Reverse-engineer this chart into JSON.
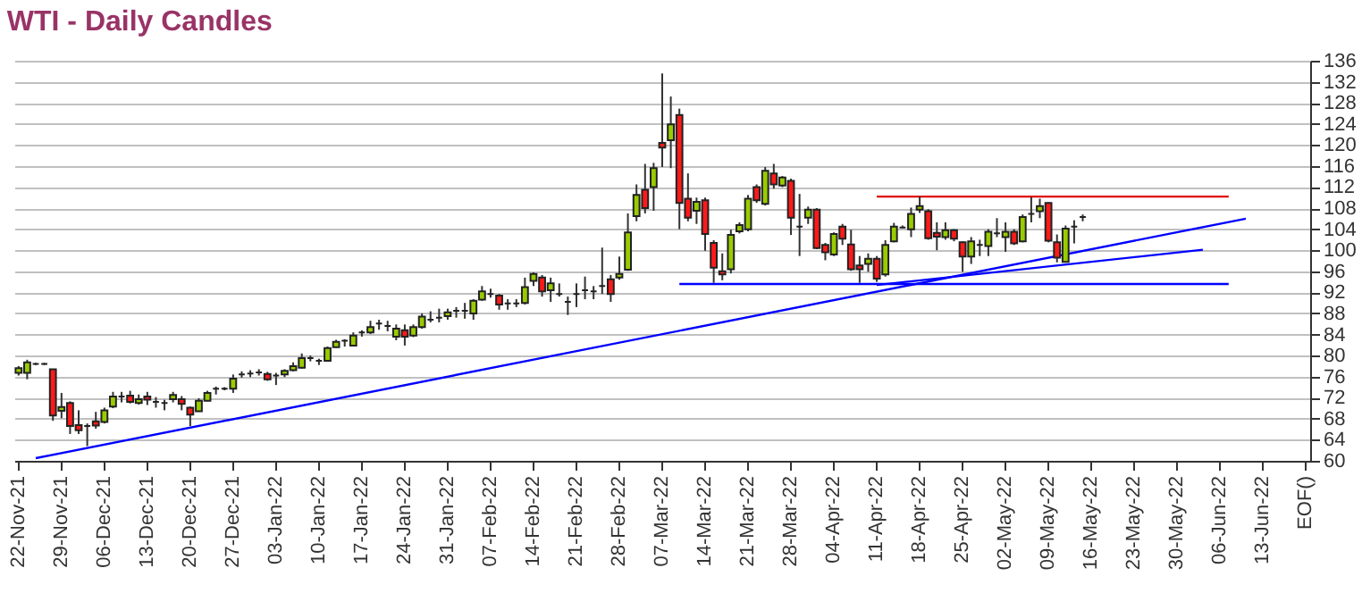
{
  "chart_data": {
    "type": "candlestick",
    "title": "WTI - Daily Candles",
    "categories": [
      "22-Nov-21",
      null,
      null,
      null,
      null,
      "29-Nov-21",
      null,
      null,
      null,
      null,
      "06-Dec-21",
      null,
      null,
      null,
      null,
      "13-Dec-21",
      null,
      null,
      null,
      null,
      "20-Dec-21",
      null,
      null,
      null,
      null,
      "27-Dec-21",
      null,
      null,
      null,
      null,
      "03-Jan-22",
      null,
      null,
      null,
      null,
      "10-Jan-22",
      null,
      null,
      null,
      null,
      "17-Jan-22",
      null,
      null,
      null,
      null,
      "24-Jan-22",
      null,
      null,
      null,
      null,
      "31-Jan-22",
      null,
      null,
      null,
      null,
      "07-Feb-22",
      null,
      null,
      null,
      null,
      "14-Feb-22",
      null,
      null,
      null,
      null,
      "21-Feb-22",
      null,
      null,
      null,
      null,
      "28-Feb-22",
      null,
      null,
      null,
      null,
      "07-Mar-22",
      null,
      null,
      null,
      null,
      "14-Mar-22",
      null,
      null,
      null,
      null,
      "21-Mar-22",
      null,
      null,
      null,
      null,
      "28-Mar-22",
      null,
      null,
      null,
      null,
      "04-Apr-22",
      null,
      null,
      null,
      null,
      "11-Apr-22",
      null,
      null,
      null,
      null,
      "18-Apr-22",
      null,
      null,
      null,
      null,
      "25-Apr-22",
      null,
      null,
      null,
      null,
      "02-May-22",
      null,
      null,
      null,
      null,
      "09-May-22",
      null,
      null,
      null,
      null,
      "16-May-22",
      null,
      null,
      null,
      null,
      "23-May-22",
      null,
      null,
      null,
      null,
      "30-May-22",
      null,
      null,
      null,
      null,
      "06-Jun-22",
      null,
      null,
      null,
      null,
      "13-Jun-22",
      null,
      null,
      null,
      null,
      "EOF()"
    ],
    "ohlc": [
      [
        76.7,
        78.0,
        76.2,
        77.6
      ],
      [
        76.7,
        79.2,
        75.5,
        78.7
      ],
      [
        78.4,
        78.6,
        78.2,
        78.4
      ],
      [
        78.4,
        78.6,
        78.2,
        78.4
      ],
      [
        77.4,
        77.4,
        67.6,
        68.6
      ],
      [
        69.5,
        72.9,
        68.1,
        70.2
      ],
      [
        71.0,
        71.3,
        65.1,
        66.6
      ],
      [
        66.8,
        69.6,
        65.1,
        65.8
      ],
      [
        66.6,
        67.1,
        62.8,
        66.6
      ],
      [
        67.5,
        69.3,
        66.1,
        66.7
      ],
      [
        67.4,
        70.1,
        67.1,
        69.6
      ],
      [
        70.3,
        73.1,
        70.0,
        72.2
      ],
      [
        72.2,
        73.1,
        71.1,
        72.2
      ],
      [
        72.4,
        73.3,
        70.9,
        71.2
      ],
      [
        71.0,
        72.6,
        70.7,
        71.7
      ],
      [
        72.2,
        73.1,
        70.6,
        71.6
      ],
      [
        71.2,
        72.1,
        70.1,
        71.2
      ],
      [
        71.0,
        71.6,
        69.6,
        71.0
      ],
      [
        71.7,
        73.1,
        71.1,
        72.5
      ],
      [
        71.7,
        72.3,
        69.6,
        70.8
      ],
      [
        70.1,
        70.3,
        66.6,
        68.8
      ],
      [
        69.4,
        71.9,
        69.3,
        71.4
      ],
      [
        71.4,
        73.3,
        71.3,
        72.9
      ],
      [
        73.7,
        74.1,
        72.6,
        73.7
      ],
      [
        73.7,
        74.0,
        73.4,
        73.7
      ],
      [
        73.7,
        76.4,
        72.9,
        75.6
      ],
      [
        76.4,
        77.0,
        75.8,
        76.4
      ],
      [
        76.6,
        77.2,
        75.9,
        76.6
      ],
      [
        76.8,
        77.4,
        76.2,
        76.8
      ],
      [
        76.5,
        76.9,
        75.2,
        75.5
      ],
      [
        76.2,
        76.7,
        74.4,
        76.2
      ],
      [
        76.4,
        77.4,
        75.9,
        77.1
      ],
      [
        77.2,
        78.7,
        77.0,
        78.0
      ],
      [
        77.7,
        80.4,
        77.5,
        79.5
      ],
      [
        79.5,
        80.0,
        78.9,
        79.5
      ],
      [
        79.0,
        79.4,
        78.2,
        79.0
      ],
      [
        79.0,
        81.7,
        78.9,
        81.4
      ],
      [
        81.6,
        83.0,
        81.5,
        82.6
      ],
      [
        82.8,
        83.1,
        81.7,
        82.8
      ],
      [
        81.9,
        84.4,
        81.8,
        83.8
      ],
      [
        84.4,
        84.8,
        83.6,
        84.4
      ],
      [
        84.4,
        86.6,
        84.1,
        85.4
      ],
      [
        86.1,
        86.8,
        84.9,
        86.1
      ],
      [
        85.6,
        86.6,
        84.6,
        85.6
      ],
      [
        83.6,
        85.9,
        82.9,
        85.1
      ],
      [
        84.8,
        85.9,
        81.9,
        83.6
      ],
      [
        83.8,
        85.9,
        83.5,
        85.4
      ],
      [
        85.4,
        88.0,
        85.1,
        87.4
      ],
      [
        86.8,
        88.4,
        86.3,
        86.8
      ],
      [
        87.2,
        88.9,
        86.3,
        87.2
      ],
      [
        87.5,
        88.9,
        86.8,
        88.2
      ],
      [
        88.5,
        89.2,
        87.2,
        88.5
      ],
      [
        88.5,
        90.0,
        87.0,
        88.5
      ],
      [
        88.0,
        90.7,
        86.8,
        90.4
      ],
      [
        90.6,
        93.2,
        90.4,
        92.2
      ],
      [
        91.7,
        92.7,
        91.0,
        91.7
      ],
      [
        91.4,
        91.7,
        88.7,
        89.7
      ],
      [
        89.9,
        90.7,
        88.7,
        89.9
      ],
      [
        89.9,
        90.7,
        89.2,
        89.9
      ],
      [
        90.0,
        94.8,
        89.7,
        93.0
      ],
      [
        94.2,
        95.8,
        93.2,
        95.5
      ],
      [
        94.8,
        95.3,
        91.2,
        92.2
      ],
      [
        92.4,
        94.8,
        90.2,
        93.7
      ],
      [
        91.7,
        93.7,
        91.2,
        91.7
      ],
      [
        90.2,
        91.2,
        87.7,
        90.2
      ],
      [
        91.7,
        93.7,
        89.2,
        91.7
      ],
      [
        92.4,
        95.0,
        90.7,
        92.4
      ],
      [
        92.2,
        93.2,
        90.7,
        92.2
      ],
      [
        93.2,
        100.5,
        91.7,
        93.2
      ],
      [
        94.5,
        95.3,
        90.2,
        91.7
      ],
      [
        94.8,
        98.8,
        94.4,
        95.5
      ],
      [
        96.3,
        107.0,
        96.1,
        103.4
      ],
      [
        106.5,
        112.5,
        105.5,
        110.5
      ],
      [
        111.5,
        116.4,
        107.0,
        108.0
      ],
      [
        112.0,
        116.6,
        107.5,
        115.6
      ],
      [
        120.4,
        133.6,
        115.8,
        119.5
      ],
      [
        120.9,
        129.2,
        115.6,
        123.9
      ],
      [
        125.7,
        126.9,
        104.0,
        109.0
      ],
      [
        109.8,
        114.6,
        105.5,
        106.2
      ],
      [
        107.5,
        110.0,
        105.0,
        109.2
      ],
      [
        109.5,
        110.0,
        99.9,
        103.1
      ],
      [
        101.4,
        101.9,
        93.8,
        96.7
      ],
      [
        96.0,
        99.4,
        94.3,
        95.4
      ],
      [
        96.4,
        103.9,
        95.6,
        102.9
      ],
      [
        103.6,
        105.3,
        103.2,
        104.8
      ],
      [
        104.0,
        110.5,
        103.6,
        109.8
      ],
      [
        112.0,
        112.5,
        109.0,
        109.5
      ],
      [
        108.8,
        115.8,
        108.5,
        115.1
      ],
      [
        114.6,
        116.4,
        111.7,
        112.5
      ],
      [
        112.3,
        114.1,
        112.0,
        113.8
      ],
      [
        113.2,
        113.6,
        102.9,
        106.2
      ],
      [
        104.5,
        110.7,
        98.9,
        104.5
      ],
      [
        106.2,
        108.3,
        105.0,
        107.7
      ],
      [
        107.7,
        108.0,
        100.2,
        100.4
      ],
      [
        101.0,
        101.4,
        98.1,
        99.6
      ],
      [
        99.2,
        103.4,
        98.9,
        103.1
      ],
      [
        104.5,
        105.0,
        101.0,
        102.2
      ],
      [
        101.1,
        103.9,
        96.1,
        96.4
      ],
      [
        97.1,
        98.9,
        93.8,
        96.4
      ],
      [
        97.4,
        99.4,
        95.9,
        98.4
      ],
      [
        98.4,
        98.9,
        94.0,
        94.6
      ],
      [
        95.4,
        101.9,
        95.0,
        101.0
      ],
      [
        101.7,
        105.2,
        101.5,
        104.5
      ],
      [
        104.3,
        104.7,
        104.2,
        104.3
      ],
      [
        104.0,
        108.1,
        102.5,
        106.9
      ],
      [
        107.7,
        110.2,
        107.1,
        108.4
      ],
      [
        107.4,
        107.8,
        102.0,
        102.3
      ],
      [
        103.3,
        105.3,
        100.0,
        102.6
      ],
      [
        102.5,
        105.3,
        102.0,
        103.8
      ],
      [
        103.8,
        104.0,
        101.7,
        102.2
      ],
      [
        101.5,
        101.7,
        95.9,
        98.8
      ],
      [
        98.8,
        102.5,
        97.4,
        101.7
      ],
      [
        101.0,
        102.0,
        98.9,
        101.0
      ],
      [
        100.8,
        104.0,
        98.9,
        103.5
      ],
      [
        103.2,
        106.1,
        102.5,
        103.2
      ],
      [
        102.5,
        105.3,
        99.7,
        103.5
      ],
      [
        103.5,
        104.0,
        101.0,
        101.3
      ],
      [
        101.7,
        106.8,
        101.5,
        106.3
      ],
      [
        106.9,
        110.1,
        105.3,
        106.9
      ],
      [
        107.4,
        109.8,
        106.1,
        108.4
      ],
      [
        109.0,
        109.1,
        101.5,
        101.8
      ],
      [
        101.5,
        103.0,
        97.7,
        98.6
      ],
      [
        97.8,
        104.7,
        97.7,
        104.1
      ],
      [
        104.5,
        105.7,
        101.3,
        104.5
      ],
      [
        106.3,
        106.8,
        105.5,
        106.3
      ],
      null,
      null,
      null,
      null,
      null,
      null,
      null,
      null,
      null,
      null,
      null,
      null,
      null,
      null,
      null,
      null,
      null,
      null,
      null,
      null,
      null,
      null,
      null,
      null,
      null,
      null
    ],
    "series": [
      {
        "type": "line",
        "color": "#0000ff",
        "values": [
          null,
          null,
          60.5,
          null,
          null,
          null,
          null,
          null,
          null,
          null,
          null,
          null,
          null,
          null,
          null,
          null,
          null,
          null,
          null,
          null,
          null,
          null,
          null,
          null,
          null,
          null,
          null,
          null,
          null,
          null,
          null,
          null,
          null,
          null,
          null,
          null,
          null,
          null,
          null,
          null,
          null,
          null,
          null,
          null,
          null,
          null,
          null,
          null,
          null,
          null,
          null,
          null,
          null,
          null,
          null,
          null,
          null,
          null,
          null,
          null,
          null,
          null,
          null,
          null,
          null,
          null,
          null,
          null,
          null,
          null,
          null,
          null,
          null,
          null,
          null,
          null,
          null,
          null,
          null,
          null,
          null,
          null,
          null,
          null,
          null,
          null,
          null,
          null,
          null,
          null,
          null,
          null,
          null,
          null,
          null,
          null,
          null,
          null,
          null,
          null,
          null,
          null,
          null,
          null,
          null,
          null,
          null,
          null,
          null,
          null,
          null,
          null,
          null,
          null,
          null,
          null,
          null,
          null,
          null,
          null,
          null,
          null,
          null,
          null,
          null,
          null,
          null,
          null,
          null,
          null,
          null,
          null,
          null,
          null,
          null,
          null,
          null,
          null,
          null,
          null,
          null,
          null,
          null,
          106.0,
          null,
          null,
          null,
          null,
          null,
          null,
          null
        ]
      },
      {
        "type": "line",
        "color": "#0000ff",
        "values": [
          null,
          null,
          null,
          null,
          null,
          null,
          null,
          null,
          null,
          null,
          null,
          null,
          null,
          null,
          null,
          null,
          null,
          null,
          null,
          null,
          null,
          null,
          null,
          null,
          null,
          null,
          null,
          null,
          null,
          null,
          null,
          null,
          null,
          null,
          null,
          null,
          null,
          null,
          null,
          null,
          null,
          null,
          null,
          null,
          null,
          null,
          null,
          null,
          null,
          null,
          null,
          null,
          null,
          null,
          null,
          null,
          null,
          null,
          null,
          null,
          null,
          null,
          null,
          null,
          null,
          null,
          null,
          null,
          null,
          null,
          null,
          null,
          null,
          null,
          null,
          null,
          null,
          null,
          null,
          null,
          null,
          null,
          null,
          null,
          null,
          null,
          null,
          null,
          null,
          null,
          null,
          null,
          null,
          null,
          null,
          null,
          null,
          null,
          null,
          null,
          93.4,
          null,
          null,
          null,
          null,
          null,
          null,
          null,
          null,
          null,
          null,
          null,
          null,
          null,
          null,
          null,
          null,
          null,
          null,
          null,
          null,
          null,
          null,
          null,
          null,
          null,
          null,
          null,
          null,
          null,
          null,
          null,
          null,
          null,
          null,
          null,
          null,
          null,
          100.1,
          null,
          null,
          null,
          null,
          null,
          null,
          null,
          null,
          null,
          null,
          null,
          null
        ]
      },
      {
        "type": "line",
        "color": "#0000ff",
        "values": [
          null,
          null,
          null,
          null,
          null,
          null,
          null,
          null,
          null,
          null,
          null,
          null,
          null,
          null,
          null,
          null,
          null,
          null,
          null,
          null,
          null,
          null,
          null,
          null,
          null,
          null,
          null,
          null,
          null,
          null,
          null,
          null,
          null,
          null,
          null,
          null,
          null,
          null,
          null,
          null,
          null,
          null,
          null,
          null,
          null,
          null,
          null,
          null,
          null,
          null,
          null,
          null,
          null,
          null,
          null,
          null,
          null,
          null,
          null,
          null,
          null,
          null,
          null,
          null,
          null,
          null,
          null,
          null,
          null,
          null,
          null,
          null,
          null,
          null,
          null,
          null,
          null,
          93.6,
          null,
          null,
          null,
          null,
          null,
          null,
          null,
          null,
          null,
          null,
          null,
          null,
          null,
          null,
          null,
          null,
          null,
          null,
          null,
          null,
          null,
          null,
          null,
          null,
          null,
          null,
          null,
          null,
          null,
          null,
          null,
          null,
          null,
          null,
          null,
          null,
          null,
          null,
          null,
          null,
          null,
          null,
          null,
          null,
          null,
          null,
          null,
          null,
          null,
          null,
          null,
          null,
          null,
          null,
          null,
          null,
          null,
          null,
          null,
          null,
          null,
          null,
          null,
          93.6,
          null,
          null,
          null,
          null,
          null,
          null,
          null,
          null,
          null
        ]
      },
      {
        "type": "line",
        "color": "#e00000",
        "values": [
          null,
          null,
          null,
          null,
          null,
          null,
          null,
          null,
          null,
          null,
          null,
          null,
          null,
          null,
          null,
          null,
          null,
          null,
          null,
          null,
          null,
          null,
          null,
          null,
          null,
          null,
          null,
          null,
          null,
          null,
          null,
          null,
          null,
          null,
          null,
          null,
          null,
          null,
          null,
          null,
          null,
          null,
          null,
          null,
          null,
          null,
          null,
          null,
          null,
          null,
          null,
          null,
          null,
          null,
          null,
          null,
          null,
          null,
          null,
          null,
          null,
          null,
          null,
          null,
          null,
          null,
          null,
          null,
          null,
          null,
          null,
          null,
          null,
          null,
          null,
          null,
          null,
          null,
          null,
          null,
          null,
          null,
          null,
          null,
          null,
          null,
          null,
          null,
          null,
          null,
          null,
          null,
          null,
          null,
          null,
          null,
          null,
          null,
          null,
          null,
          110.2,
          null,
          null,
          null,
          null,
          null,
          null,
          null,
          null,
          null,
          null,
          null,
          null,
          null,
          null,
          null,
          null,
          null,
          null,
          null,
          null,
          null,
          null,
          null,
          null,
          null,
          null,
          null,
          null,
          null,
          null,
          null,
          null,
          null,
          null,
          null,
          null,
          null,
          null,
          null,
          null,
          110.2,
          null,
          null,
          null,
          null,
          null,
          null,
          null,
          null,
          null
        ]
      }
    ],
    "ylim": [
      60,
      136
    ],
    "yticks": [
      60,
      64,
      68,
      72,
      76,
      80,
      84,
      88,
      92,
      96,
      100,
      104,
      108,
      112,
      116,
      120,
      124,
      128,
      132,
      136
    ],
    "grid": "y"
  }
}
